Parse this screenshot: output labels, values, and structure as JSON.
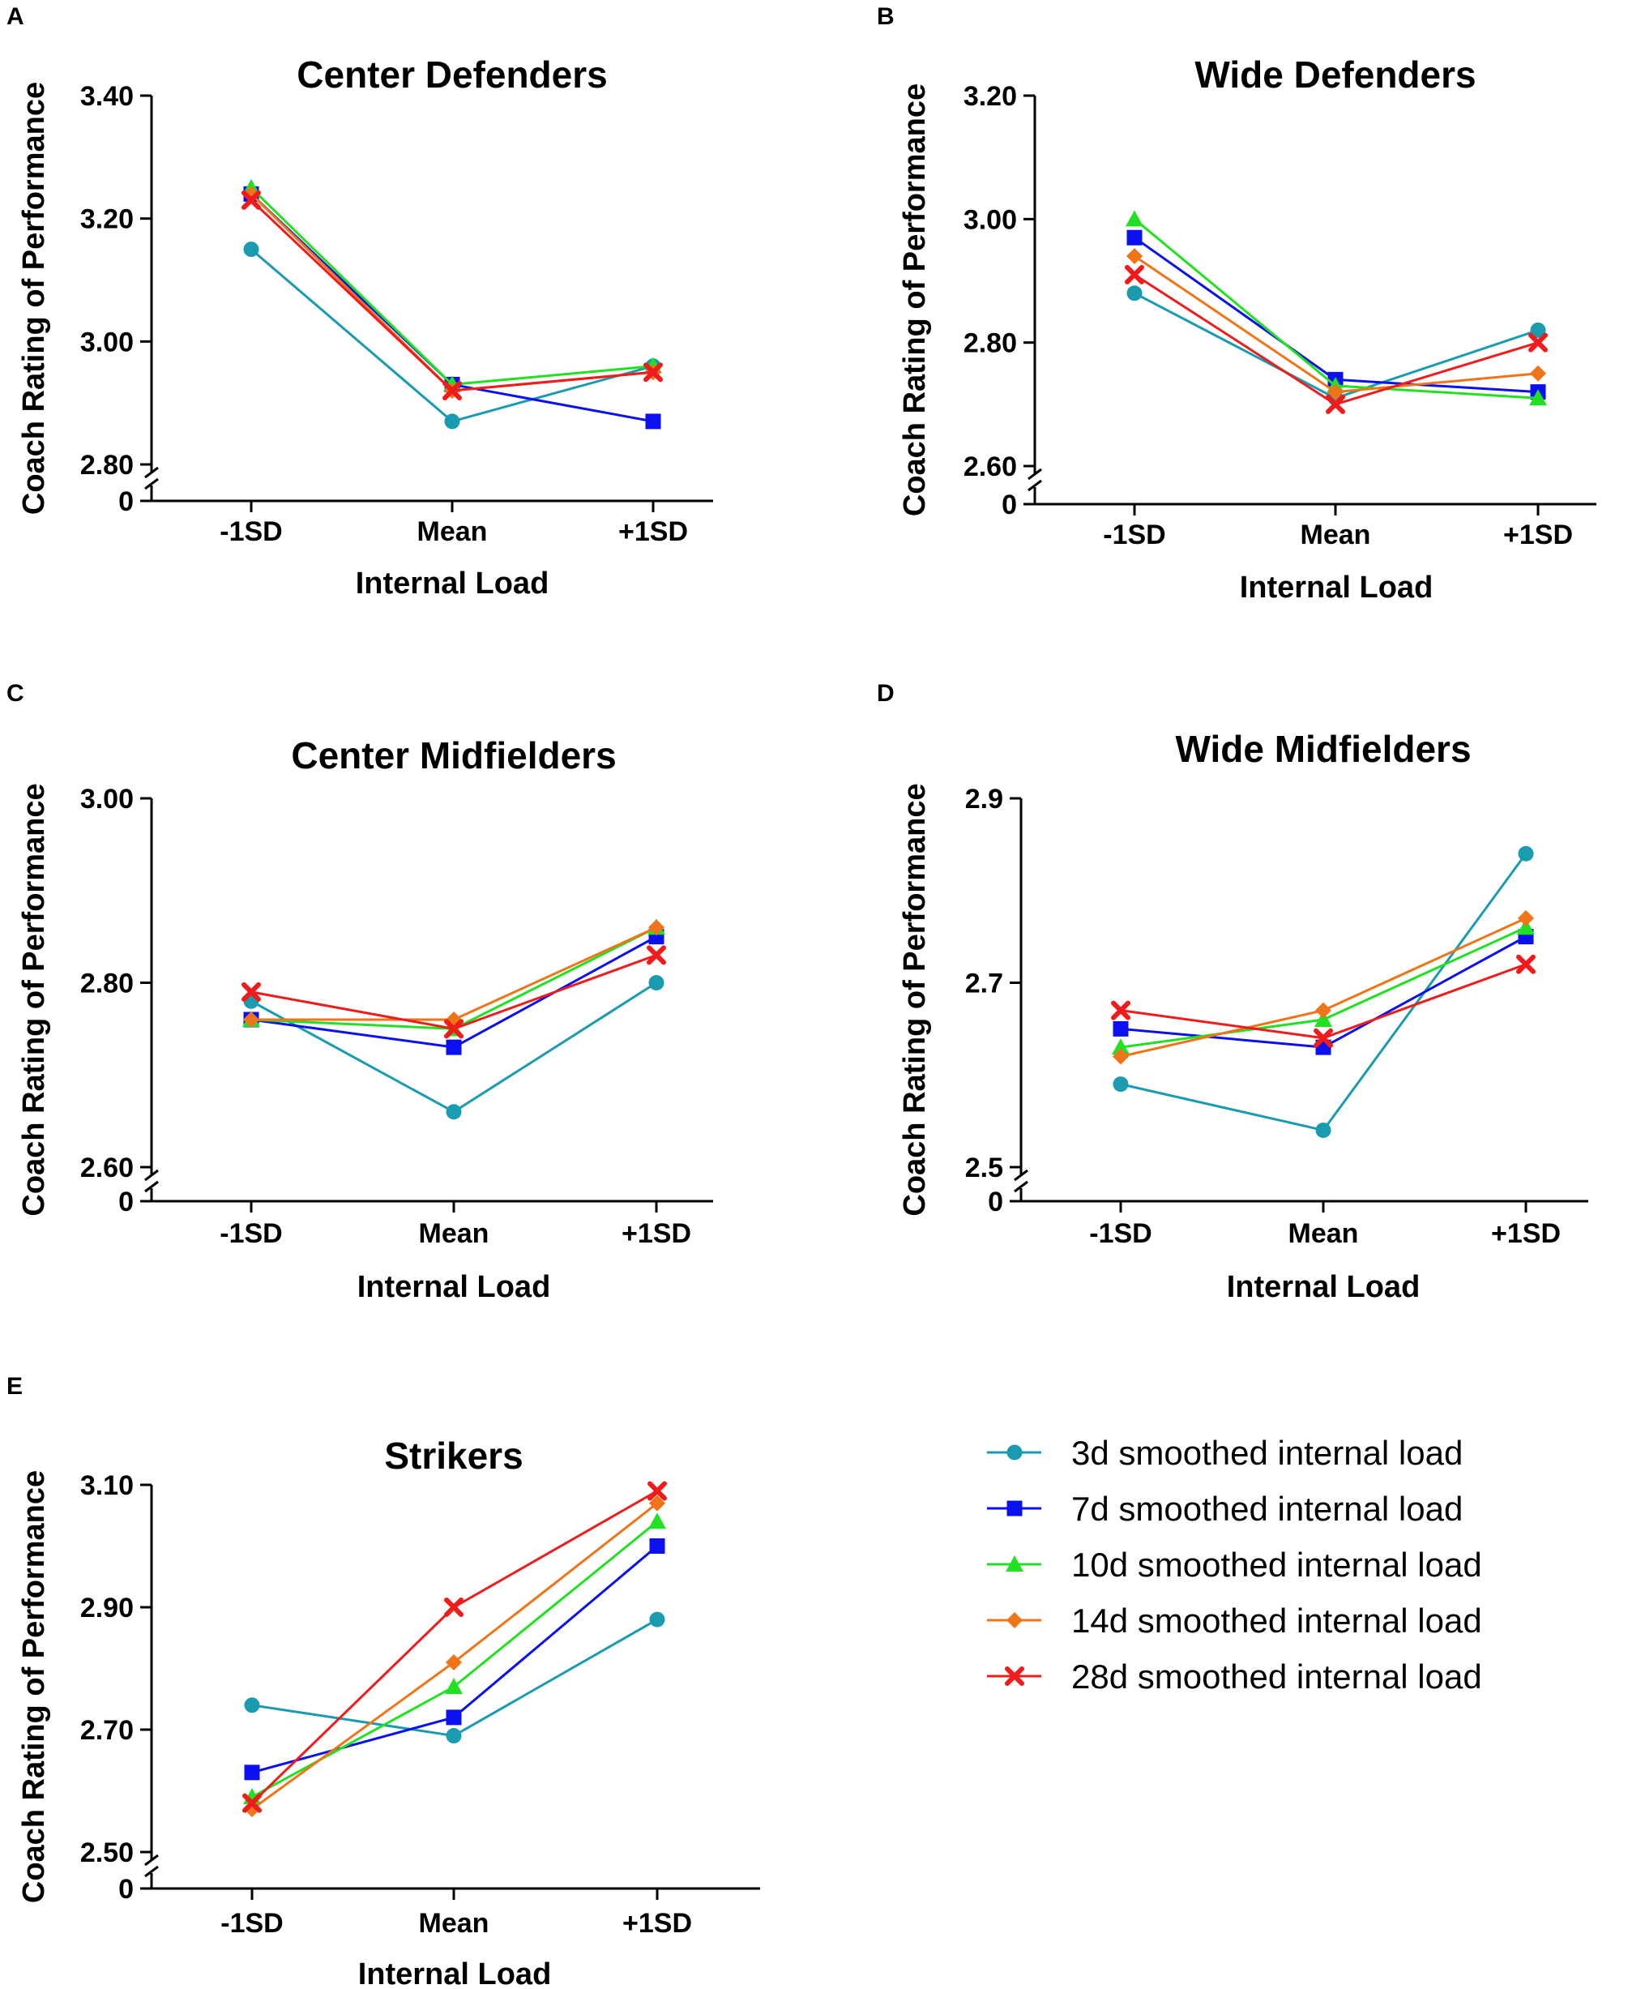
{
  "legend": {
    "items": [
      {
        "label": "3d smoothed internal load",
        "color": "#1a9bb0",
        "marker": "circle"
      },
      {
        "label": "7d smoothed internal load",
        "color": "#0a10f0",
        "marker": "square"
      },
      {
        "label": "10d smoothed internal load",
        "color": "#22e022",
        "marker": "triangle"
      },
      {
        "label": "14d smoothed internal load",
        "color": "#f07418",
        "marker": "diamond"
      },
      {
        "label": "28d smoothed internal load",
        "color": "#f01c1c",
        "marker": "x"
      }
    ]
  },
  "chart_data": [
    {
      "panel": "A",
      "type": "line",
      "title": "Center Defenders",
      "xlabel": "Internal Load",
      "ylabel": "Coach Rating of Performance",
      "categories": [
        "-1SD",
        "Mean",
        "+1SD"
      ],
      "ylim": [
        2.8,
        3.4
      ],
      "yticks": [
        2.8,
        3.0,
        3.2,
        3.4
      ],
      "ytick_labels": [
        "2.80",
        "3.00",
        "3.20",
        "3.40"
      ],
      "axis_break_label": "0",
      "series": [
        {
          "name": "3d smoothed internal load",
          "values": [
            3.15,
            2.87,
            2.96
          ]
        },
        {
          "name": "7d smoothed internal load",
          "values": [
            3.24,
            2.93,
            2.87
          ]
        },
        {
          "name": "10d smoothed internal load",
          "values": [
            3.25,
            2.93,
            2.96
          ]
        },
        {
          "name": "14d smoothed internal load",
          "values": [
            3.24,
            2.92,
            2.95
          ]
        },
        {
          "name": "28d smoothed internal load",
          "values": [
            3.23,
            2.92,
            2.95
          ]
        }
      ]
    },
    {
      "panel": "B",
      "type": "line",
      "title": "Wide Defenders",
      "xlabel": "Internal Load",
      "ylabel": "Coach Rating of Performance",
      "categories": [
        "-1SD",
        "Mean",
        "+1SD"
      ],
      "ylim": [
        2.6,
        3.2
      ],
      "yticks": [
        2.6,
        2.8,
        3.0,
        3.2
      ],
      "ytick_labels": [
        "2.60",
        "2.80",
        "3.00",
        "3.20"
      ],
      "axis_break_label": "0",
      "series": [
        {
          "name": "3d smoothed internal load",
          "values": [
            2.88,
            2.71,
            2.82
          ]
        },
        {
          "name": "7d smoothed internal load",
          "values": [
            2.97,
            2.74,
            2.72
          ]
        },
        {
          "name": "10d smoothed internal load",
          "values": [
            3.0,
            2.73,
            2.71
          ]
        },
        {
          "name": "14d smoothed internal load",
          "values": [
            2.94,
            2.72,
            2.75
          ]
        },
        {
          "name": "28d smoothed internal load",
          "values": [
            2.91,
            2.7,
            2.8
          ]
        }
      ]
    },
    {
      "panel": "C",
      "type": "line",
      "title": "Center Midfielders",
      "xlabel": "Internal Load",
      "ylabel": "Coach Rating of Performance",
      "categories": [
        "-1SD",
        "Mean",
        "+1SD"
      ],
      "ylim": [
        2.6,
        3.0
      ],
      "yticks": [
        2.6,
        2.8,
        3.0
      ],
      "ytick_labels": [
        "2.60",
        "2.80",
        "3.00"
      ],
      "axis_break_label": "0",
      "series": [
        {
          "name": "3d smoothed internal load",
          "values": [
            2.78,
            2.66,
            2.8
          ]
        },
        {
          "name": "7d smoothed internal load",
          "values": [
            2.76,
            2.73,
            2.85
          ]
        },
        {
          "name": "10d smoothed internal load",
          "values": [
            2.76,
            2.75,
            2.86
          ]
        },
        {
          "name": "14d smoothed internal load",
          "values": [
            2.76,
            2.76,
            2.86
          ]
        },
        {
          "name": "28d smoothed internal load",
          "values": [
            2.79,
            2.75,
            2.83
          ]
        }
      ]
    },
    {
      "panel": "D",
      "type": "line",
      "title": "Wide Midfielders",
      "xlabel": "Internal Load",
      "ylabel": "Coach Rating of Performance",
      "categories": [
        "-1SD",
        "Mean",
        "+1SD"
      ],
      "ylim": [
        2.5,
        2.9
      ],
      "yticks": [
        2.5,
        2.7,
        2.9
      ],
      "ytick_labels": [
        "2.5",
        "2.7",
        "2.9"
      ],
      "axis_break_label": "0",
      "series": [
        {
          "name": "3d smoothed internal load",
          "values": [
            2.59,
            2.54,
            2.84
          ]
        },
        {
          "name": "7d smoothed internal load",
          "values": [
            2.65,
            2.63,
            2.75
          ]
        },
        {
          "name": "10d smoothed internal load",
          "values": [
            2.63,
            2.66,
            2.76
          ]
        },
        {
          "name": "14d smoothed internal load",
          "values": [
            2.62,
            2.67,
            2.77
          ]
        },
        {
          "name": "28d smoothed internal load",
          "values": [
            2.67,
            2.64,
            2.72
          ]
        }
      ]
    },
    {
      "panel": "E",
      "type": "line",
      "title": "Strikers",
      "xlabel": "Internal Load",
      "ylabel": "Coach Rating of Performance",
      "categories": [
        "-1SD",
        "Mean",
        "+1SD"
      ],
      "ylim": [
        2.5,
        3.1
      ],
      "yticks": [
        2.5,
        2.7,
        2.9,
        3.1
      ],
      "ytick_labels": [
        "2.50",
        "2.70",
        "2.90",
        "3.10"
      ],
      "axis_break_label": "0",
      "series": [
        {
          "name": "3d smoothed internal load",
          "values": [
            2.74,
            2.69,
            2.88
          ]
        },
        {
          "name": "7d smoothed internal load",
          "values": [
            2.63,
            2.72,
            3.0
          ]
        },
        {
          "name": "10d smoothed internal load",
          "values": [
            2.59,
            2.77,
            3.04
          ]
        },
        {
          "name": "14d smoothed internal load",
          "values": [
            2.57,
            2.81,
            3.07
          ]
        },
        {
          "name": "28d smoothed internal load",
          "values": [
            2.58,
            2.9,
            3.09
          ]
        }
      ]
    }
  ]
}
